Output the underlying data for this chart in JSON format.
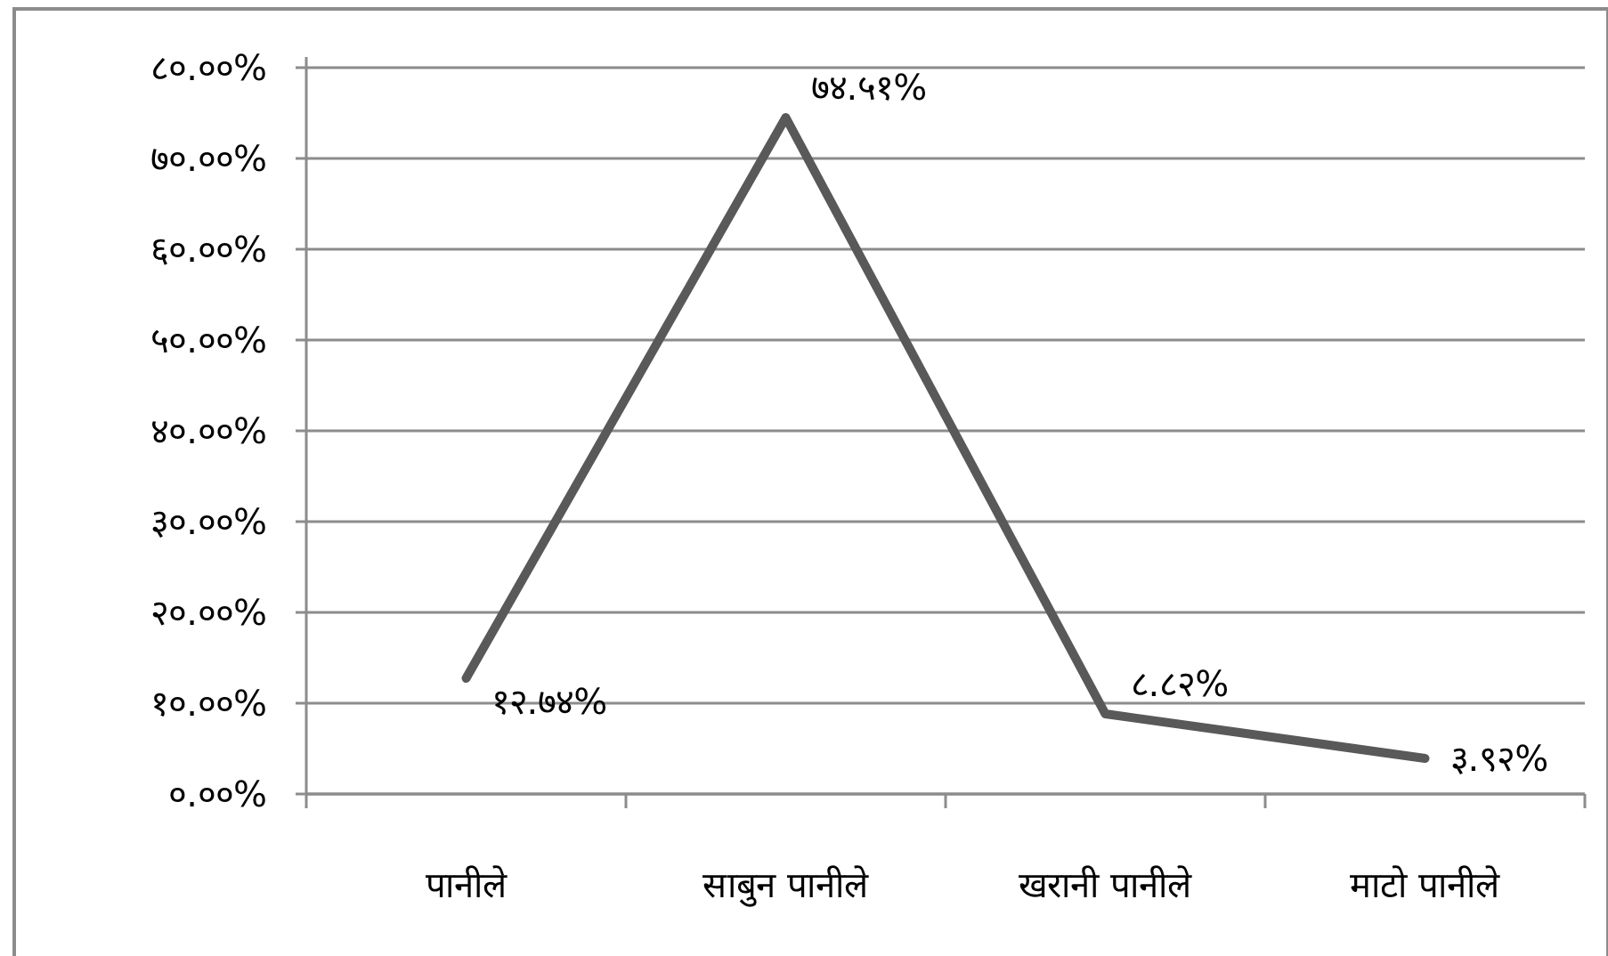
{
  "chart_data": {
    "type": "line",
    "categories": [
      "पानीले",
      "साबुन पानीले",
      "खरानी पानीले",
      "माटो पानीले"
    ],
    "series": [
      {
        "color": "#595959",
        "values": [
          12.74,
          74.51,
          8.82,
          3.92
        ],
        "value_labels": [
          "१२.७४%",
          "७४.५१%",
          "८.८२%",
          "३.९२%"
        ]
      }
    ],
    "ylim": [
      0,
      80
    ],
    "yticks": [
      {
        "value": 0,
        "label": "०.००%"
      },
      {
        "value": 10,
        "label": "१०.००%"
      },
      {
        "value": 20,
        "label": "२०.००%"
      },
      {
        "value": 30,
        "label": "३०.००%"
      },
      {
        "value": 40,
        "label": "४०.००%"
      },
      {
        "value": 50,
        "label": "५०.००%"
      },
      {
        "value": 60,
        "label": "६०.००%"
      },
      {
        "value": 70,
        "label": "७०.००%"
      },
      {
        "value": 80,
        "label": "८०.००%"
      }
    ],
    "grid": "y",
    "marker": "none",
    "line_style": "solid"
  }
}
